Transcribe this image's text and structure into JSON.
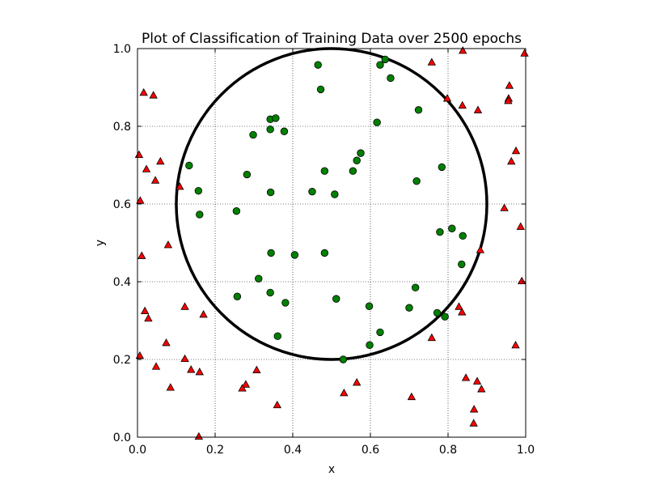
{
  "chart_data": {
    "type": "scatter",
    "title": "Plot of Classification of Training Data over 2500 epochs",
    "xlabel": "x",
    "ylabel": "y",
    "xlim": [
      0.0,
      1.0
    ],
    "ylim": [
      0.0,
      1.0
    ],
    "xticks": [
      "0.0",
      "0.2",
      "0.4",
      "0.6",
      "0.8",
      "1.0"
    ],
    "yticks": [
      "0.0",
      "0.2",
      "0.4",
      "0.6",
      "0.8",
      "1.0"
    ],
    "grid": true,
    "circle": {
      "center": [
        0.5,
        0.6
      ],
      "radius": 0.4,
      "color": "#000000"
    },
    "series": [
      {
        "marker": "circle",
        "color": "#008000",
        "points": [
          [
            0.465,
            0.958
          ],
          [
            0.625,
            0.958
          ],
          [
            0.638,
            0.972
          ],
          [
            0.652,
            0.924
          ],
          [
            0.472,
            0.895
          ],
          [
            0.724,
            0.842
          ],
          [
            0.342,
            0.818
          ],
          [
            0.356,
            0.821
          ],
          [
            0.617,
            0.81
          ],
          [
            0.342,
            0.792
          ],
          [
            0.298,
            0.778
          ],
          [
            0.378,
            0.787
          ],
          [
            0.575,
            0.731
          ],
          [
            0.565,
            0.712
          ],
          [
            0.133,
            0.699
          ],
          [
            0.482,
            0.685
          ],
          [
            0.555,
            0.685
          ],
          [
            0.784,
            0.695
          ],
          [
            0.282,
            0.676
          ],
          [
            0.719,
            0.659
          ],
          [
            0.157,
            0.634
          ],
          [
            0.343,
            0.63
          ],
          [
            0.45,
            0.632
          ],
          [
            0.508,
            0.625
          ],
          [
            0.255,
            0.582
          ],
          [
            0.16,
            0.573
          ],
          [
            0.81,
            0.537
          ],
          [
            0.779,
            0.528
          ],
          [
            0.838,
            0.518
          ],
          [
            0.344,
            0.474
          ],
          [
            0.405,
            0.469
          ],
          [
            0.482,
            0.474
          ],
          [
            0.835,
            0.445
          ],
          [
            0.312,
            0.408
          ],
          [
            0.716,
            0.385
          ],
          [
            0.342,
            0.372
          ],
          [
            0.257,
            0.362
          ],
          [
            0.512,
            0.356
          ],
          [
            0.381,
            0.346
          ],
          [
            0.597,
            0.337
          ],
          [
            0.7,
            0.333
          ],
          [
            0.772,
            0.32
          ],
          [
            0.792,
            0.31
          ],
          [
            0.361,
            0.26
          ],
          [
            0.625,
            0.27
          ],
          [
            0.598,
            0.237
          ],
          [
            0.53,
            0.2
          ]
        ]
      },
      {
        "marker": "triangle",
        "color": "#ff0000",
        "points": [
          [
            0.838,
            0.995
          ],
          [
            0.997,
            0.988
          ],
          [
            0.758,
            0.965
          ],
          [
            0.958,
            0.905
          ],
          [
            0.016,
            0.887
          ],
          [
            0.041,
            0.88
          ],
          [
            0.956,
            0.872
          ],
          [
            0.798,
            0.872
          ],
          [
            0.955,
            0.866
          ],
          [
            0.837,
            0.854
          ],
          [
            0.877,
            0.842
          ],
          [
            0.975,
            0.737
          ],
          [
            0.004,
            0.727
          ],
          [
            0.059,
            0.71
          ],
          [
            0.963,
            0.71
          ],
          [
            0.023,
            0.69
          ],
          [
            0.046,
            0.661
          ],
          [
            0.109,
            0.645
          ],
          [
            0.007,
            0.609
          ],
          [
            0.945,
            0.59
          ],
          [
            0.987,
            0.542
          ],
          [
            0.079,
            0.495
          ],
          [
            0.883,
            0.482
          ],
          [
            0.011,
            0.467
          ],
          [
            0.99,
            0.402
          ],
          [
            0.122,
            0.336
          ],
          [
            0.828,
            0.336
          ],
          [
            0.019,
            0.325
          ],
          [
            0.836,
            0.322
          ],
          [
            0.17,
            0.316
          ],
          [
            0.028,
            0.306
          ],
          [
            0.758,
            0.256
          ],
          [
            0.074,
            0.243
          ],
          [
            0.974,
            0.237
          ],
          [
            0.006,
            0.21
          ],
          [
            0.122,
            0.202
          ],
          [
            0.048,
            0.182
          ],
          [
            0.138,
            0.174
          ],
          [
            0.307,
            0.173
          ],
          [
            0.16,
            0.168
          ],
          [
            0.846,
            0.153
          ],
          [
            0.875,
            0.144
          ],
          [
            0.565,
            0.141
          ],
          [
            0.279,
            0.136
          ],
          [
            0.27,
            0.126
          ],
          [
            0.085,
            0.128
          ],
          [
            0.886,
            0.124
          ],
          [
            0.532,
            0.114
          ],
          [
            0.706,
            0.104
          ],
          [
            0.36,
            0.083
          ],
          [
            0.867,
            0.072
          ],
          [
            0.866,
            0.036
          ],
          [
            0.158,
            0.002
          ]
        ]
      }
    ]
  }
}
